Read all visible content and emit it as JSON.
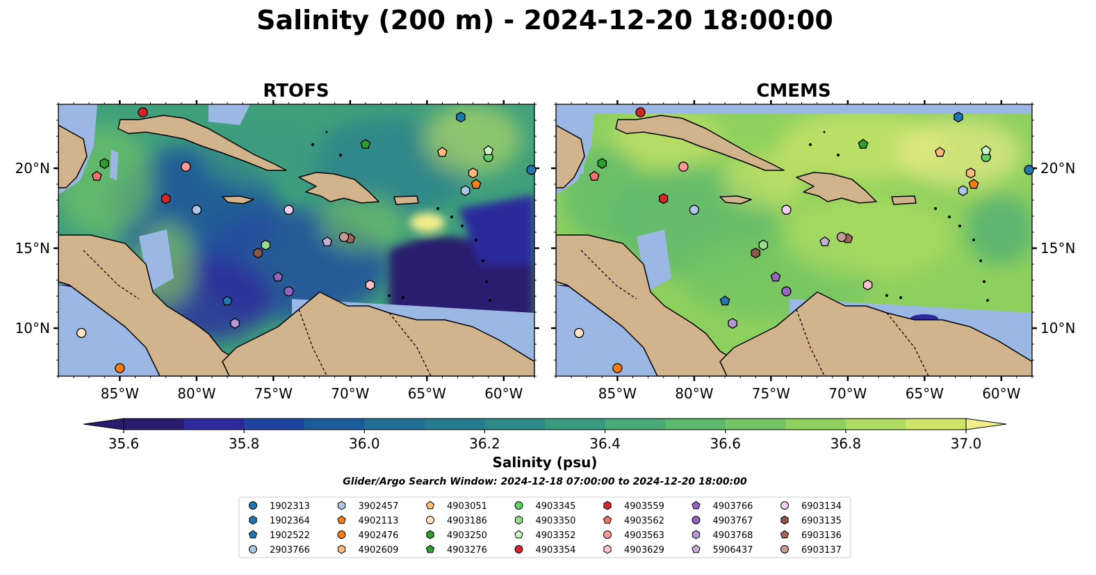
{
  "title": "Salinity (200 m) - 2024-12-20 18:00:00",
  "panels": [
    {
      "title": "RTOFS",
      "ylabels_side": "left"
    },
    {
      "title": "CMEMS",
      "ylabels_side": "right"
    }
  ],
  "map": {
    "lon_range": [
      -89,
      -58
    ],
    "lat_range": [
      7,
      24
    ],
    "lon_ticks": [
      -85,
      -80,
      -75,
      -70,
      -65,
      -60
    ],
    "lat_ticks": [
      10,
      15,
      20
    ],
    "lon_tick_labels": [
      "85°W",
      "80°W",
      "75°W",
      "70°W",
      "65°W",
      "60°W"
    ],
    "lat_tick_labels": [
      "10°N",
      "15°N",
      "20°N"
    ]
  },
  "colorbar": {
    "label": "Salinity (psu)",
    "min": 35.6,
    "max": 37.0,
    "step": 0.1,
    "tick_values": [
      35.6,
      35.8,
      36.0,
      36.2,
      36.4,
      36.6,
      36.8,
      37.0
    ],
    "tick_labels": [
      "35.6",
      "35.8",
      "36.0",
      "36.2",
      "36.4",
      "36.6",
      "36.8",
      "37.0"
    ],
    "colors": [
      "#2a1b6e",
      "#2c2a9c",
      "#1f43a0",
      "#1a5c9c",
      "#1f6e96",
      "#257b8f",
      "#2d8a87",
      "#389b7f",
      "#48aa77",
      "#5cb86d",
      "#73c463",
      "#8ed05e",
      "#aedc62",
      "#cfe56a",
      "#f3ee8c"
    ]
  },
  "search_window": "Glider/Argo Search Window: 2024-12-18 07:00:00 to 2024-12-20 18:00:00",
  "colors": {
    "land": "#d2b48c",
    "shelf": "#9bb7e4",
    "coast": "#000000"
  },
  "floats": [
    {
      "id": "1902313",
      "marker": "circle",
      "color": "#1f77b4",
      "lon": -58.2,
      "lat": 19.9
    },
    {
      "id": "1902364",
      "marker": "hexagon",
      "color": "#1f77b4",
      "lon": -62.8,
      "lat": 23.2
    },
    {
      "id": "1902522",
      "marker": "pentagon",
      "color": "#1f77b4",
      "lon": -78.0,
      "lat": 11.7
    },
    {
      "id": "2903766",
      "marker": "circle",
      "color": "#aec7e8",
      "lon": -80.0,
      "lat": 17.4
    },
    {
      "id": "3902457",
      "marker": "hexagon",
      "color": "#aec7e8",
      "lon": -62.5,
      "lat": 18.6
    },
    {
      "id": "4902113",
      "marker": "pentagon",
      "color": "#ff7f0e",
      "lon": -61.8,
      "lat": 19.0
    },
    {
      "id": "4902476",
      "marker": "circle",
      "color": "#ff7f0e",
      "lon": -85.0,
      "lat": 7.5
    },
    {
      "id": "4902609",
      "marker": "hexagon",
      "color": "#ffbb78",
      "lon": -62.0,
      "lat": 19.7
    },
    {
      "id": "4903051",
      "marker": "pentagon",
      "color": "#ffbb78",
      "lon": -64.0,
      "lat": 21.0
    },
    {
      "id": "4903186",
      "marker": "circle",
      "color": "#ffe4c4",
      "lon": -87.5,
      "lat": 9.7
    },
    {
      "id": "4903250",
      "marker": "hexagon",
      "color": "#2ca02c",
      "lon": -86.0,
      "lat": 20.3
    },
    {
      "id": "4903276",
      "marker": "pentagon",
      "color": "#2ca02c",
      "lon": -69.0,
      "lat": 21.5
    },
    {
      "id": "4903345",
      "marker": "circle",
      "color": "#5fd35f",
      "lon": -61.0,
      "lat": 20.7
    },
    {
      "id": "4903350",
      "marker": "hexagon",
      "color": "#98df8a",
      "lon": -75.5,
      "lat": 15.2
    },
    {
      "id": "4903352",
      "marker": "pentagon",
      "color": "#ccf5c4",
      "lon": -61.0,
      "lat": 21.1
    },
    {
      "id": "4903354",
      "marker": "circle",
      "color": "#d62728",
      "lon": -83.5,
      "lat": 23.5
    },
    {
      "id": "4903559",
      "marker": "hexagon",
      "color": "#d62728",
      "lon": -82.0,
      "lat": 18.1
    },
    {
      "id": "4903562",
      "marker": "pentagon",
      "color": "#f07070",
      "lon": -86.5,
      "lat": 19.5
    },
    {
      "id": "4903563",
      "marker": "circle",
      "color": "#ff9896",
      "lon": -80.7,
      "lat": 20.1
    },
    {
      "id": "4903629",
      "marker": "hexagon",
      "color": "#ffc0cb",
      "lon": -68.7,
      "lat": 12.7
    },
    {
      "id": "4903766",
      "marker": "pentagon",
      "color": "#9467bd",
      "lon": -74.7,
      "lat": 13.2
    },
    {
      "id": "4903767",
      "marker": "circle",
      "color": "#9467bd",
      "lon": -74.0,
      "lat": 12.3
    },
    {
      "id": "4903768",
      "marker": "hexagon",
      "color": "#b497d6",
      "lon": -77.5,
      "lat": 10.3
    },
    {
      "id": "5906437",
      "marker": "pentagon",
      "color": "#c5b0d5",
      "lon": -71.5,
      "lat": 15.4
    },
    {
      "id": "6903134",
      "marker": "circle",
      "color": "#f0d0f0",
      "lon": -74.0,
      "lat": 17.4
    },
    {
      "id": "6903135",
      "marker": "hexagon",
      "color": "#8c564b",
      "lon": -76.0,
      "lat": 14.7
    },
    {
      "id": "6903136",
      "marker": "pentagon",
      "color": "#a0665b",
      "lon": -70.0,
      "lat": 15.6
    },
    {
      "id": "6903137",
      "marker": "circle",
      "color": "#c49c94",
      "lon": -70.4,
      "lat": 15.7
    }
  ]
}
